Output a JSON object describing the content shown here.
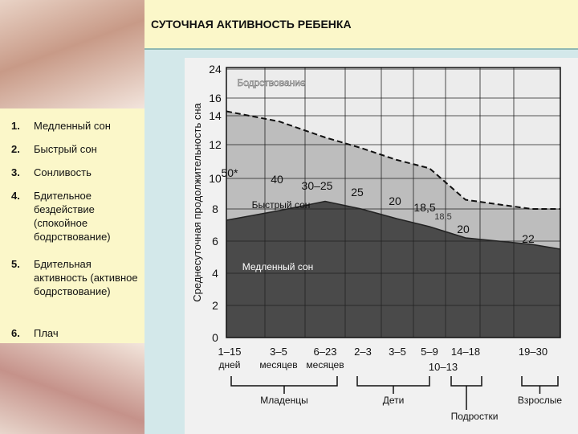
{
  "slide": {
    "title": "СУТОЧНАЯ АКТИВНОСТЬ РЕБЕНКА",
    "list": [
      {
        "num": "1.",
        "text": "Медленный сон"
      },
      {
        "num": "2.",
        "text": "Быстрый сон"
      },
      {
        "num": "3.",
        "text": "Сонливость"
      },
      {
        "num": "4.",
        "text": "Бдительное бездействие (спокойное бодрствование)"
      },
      {
        "num": "5.",
        "text": "Бдительная активность (активное бодрствование)"
      },
      {
        "num": "6.",
        "text": "Плач"
      }
    ]
  },
  "chart_data": {
    "type": "area",
    "ylabel": "Среднесуточная продолжительность сна",
    "y_ticks": [
      "0",
      "2",
      "4",
      "6",
      "8",
      "10",
      "12",
      "14",
      "16",
      "24"
    ],
    "ylim": [
      0,
      24
    ],
    "x_ticks": [
      {
        "line1": "1–15",
        "line2": "дней"
      },
      {
        "line1": "3–5",
        "line2": "месяцев"
      },
      {
        "line1": "6–23",
        "line2": "месяцев"
      },
      {
        "line1": "2–3",
        "line2": ""
      },
      {
        "line1": "3–5",
        "line2": ""
      },
      {
        "line1": "5–9",
        "line2": ""
      },
      {
        "line1": "14–18",
        "line2": ""
      },
      {
        "line1": "19–30",
        "line2": ""
      }
    ],
    "x_extra_label": "10–13",
    "total_sleep": [
      14.5,
      13.6,
      12.5,
      11.8,
      11.1,
      10.6,
      8.6,
      8.0
    ],
    "slow_sleep": [
      7.3,
      7.9,
      8.5,
      8.0,
      7.4,
      6.9,
      6.2,
      5.8
    ],
    "region_labels": {
      "wake": "Бодрствование",
      "rem": "Быстрый сон",
      "slow": "Медленный сон"
    },
    "rem_percent_labels": [
      "50*",
      "40",
      "30–25",
      "25",
      "20",
      "18,5",
      "18,5",
      "20",
      "22"
    ],
    "groups": [
      {
        "label": "Младенцы"
      },
      {
        "label": "Дети"
      },
      {
        "label": "Подростки"
      },
      {
        "label": "Взрослые"
      }
    ],
    "colors": {
      "slow": "#4a4a4a",
      "rem": "#bdbdbd",
      "wake": "#ececec",
      "grid": "#222222",
      "total_line": "#111111"
    }
  }
}
